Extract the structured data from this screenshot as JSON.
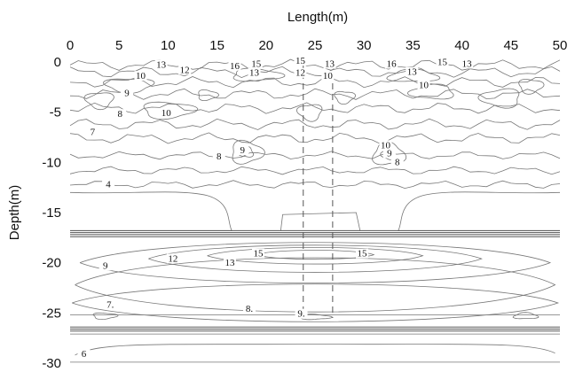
{
  "chart_data": {
    "type": "contour",
    "xlabel": "Length(m)",
    "ylabel": "Depth(m)",
    "xlim": [
      0,
      50
    ],
    "ylim": [
      -30,
      0
    ],
    "xticks": [
      0,
      5,
      10,
      15,
      20,
      25,
      30,
      35,
      40,
      45,
      50
    ],
    "yticks": [
      0,
      -5,
      -10,
      -15,
      -20,
      -25,
      -30
    ],
    "x_axis_position": "top",
    "grid": false,
    "marker_lines_x": [
      23.8,
      26.8
    ],
    "contour_labels": [
      {
        "text": "13",
        "x": 9.3,
        "y": -0.5
      },
      {
        "text": "12",
        "x": 11.7,
        "y": -1.0
      },
      {
        "text": "10",
        "x": 7.2,
        "y": -1.6
      },
      {
        "text": "16",
        "x": 16.8,
        "y": -0.6
      },
      {
        "text": "15",
        "x": 19.0,
        "y": -0.4
      },
      {
        "text": "13",
        "x": 18.8,
        "y": -1.3
      },
      {
        "text": "15",
        "x": 23.5,
        "y": -0.1
      },
      {
        "text": "12",
        "x": 23.5,
        "y": -1.3
      },
      {
        "text": "13",
        "x": 26.5,
        "y": -0.4
      },
      {
        "text": "10",
        "x": 26.3,
        "y": -1.6
      },
      {
        "text": "16",
        "x": 32.8,
        "y": -0.4
      },
      {
        "text": "15",
        "x": 38.0,
        "y": -0.2
      },
      {
        "text": "13",
        "x": 40.5,
        "y": -0.4
      },
      {
        "text": "13",
        "x": 34.9,
        "y": -1.2
      },
      {
        "text": "10",
        "x": 36.1,
        "y": -2.5
      },
      {
        "text": "9",
        "x": 5.8,
        "y": -3.3
      },
      {
        "text": "8",
        "x": 5.1,
        "y": -5.4
      },
      {
        "text": "10",
        "x": 9.8,
        "y": -5.3
      },
      {
        "text": "7",
        "x": 2.3,
        "y": -7.2
      },
      {
        "text": "9",
        "x": 17.6,
        "y": -9.0
      },
      {
        "text": "8",
        "x": 15.2,
        "y": -9.6
      },
      {
        "text": "10",
        "x": 32.2,
        "y": -8.5
      },
      {
        "text": "9",
        "x": 32.6,
        "y": -9.3
      },
      {
        "text": "8",
        "x": 33.4,
        "y": -10.2
      },
      {
        "text": "4",
        "x": 3.9,
        "y": -12.4
      },
      {
        "text": "15",
        "x": 19.2,
        "y": -19.3
      },
      {
        "text": "15",
        "x": 29.8,
        "y": -19.3
      },
      {
        "text": "12",
        "x": 10.5,
        "y": -19.8
      },
      {
        "text": "13",
        "x": 16.3,
        "y": -20.2
      },
      {
        "text": "9",
        "x": 3.6,
        "y": -20.5
      },
      {
        "text": "7.",
        "x": 4.1,
        "y": -24.4
      },
      {
        "text": "8.",
        "x": 18.3,
        "y": -24.8
      },
      {
        "text": "9.",
        "x": 23.6,
        "y": -25.3
      },
      {
        "text": "6",
        "x": 1.4,
        "y": -29.3
      }
    ]
  }
}
